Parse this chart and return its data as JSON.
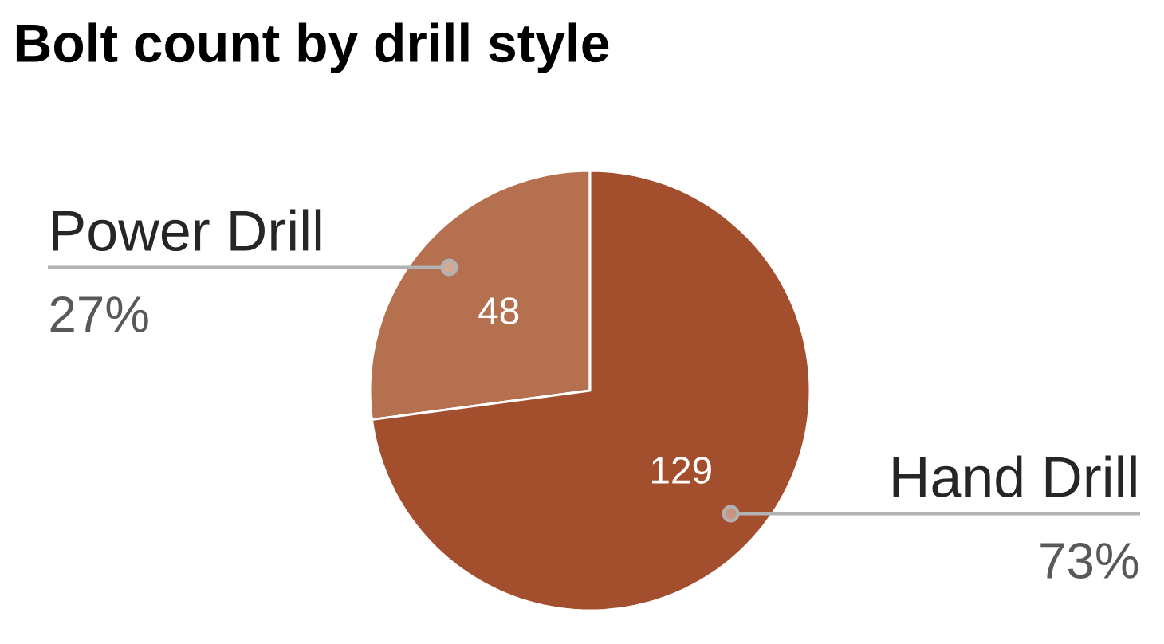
{
  "chart_data": {
    "type": "pie",
    "title": "Bolt count by drill style",
    "categories": [
      "Power Drill",
      "Hand Drill"
    ],
    "values": [
      48,
      129
    ],
    "colors": [
      "#b5704f",
      "#a34f2e"
    ],
    "value_labels": [
      "48",
      "129"
    ],
    "annotations": [
      "27%",
      "73%"
    ]
  }
}
